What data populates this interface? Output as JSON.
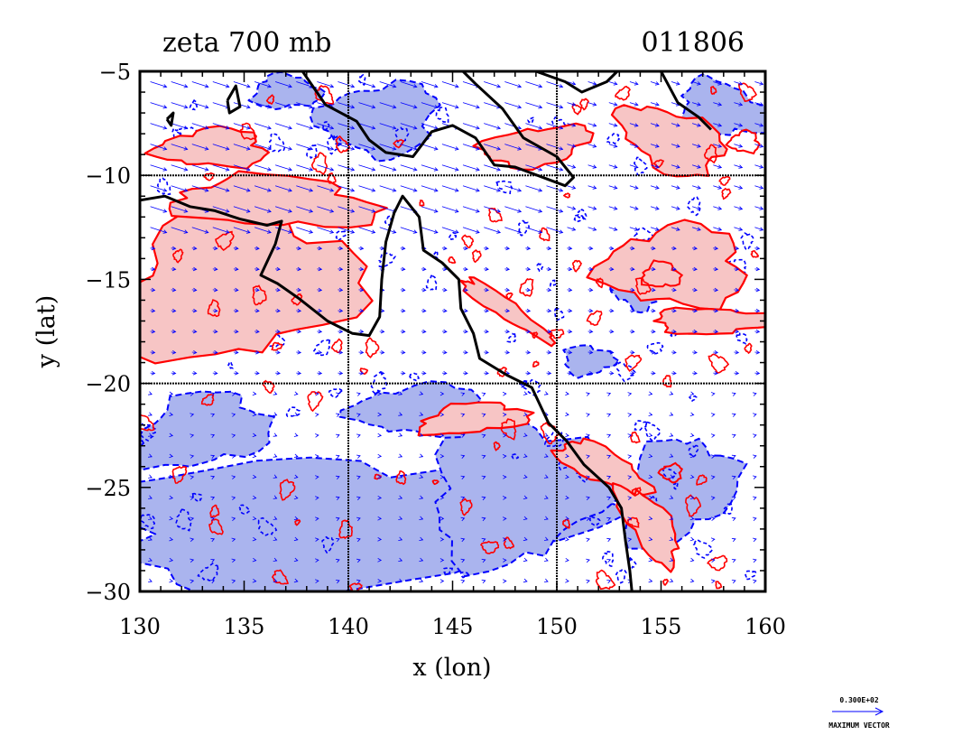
{
  "chart_data": {
    "type": "contour",
    "title": "zeta 700 mb",
    "date_label": "011806",
    "xlabel": "x (lon)",
    "ylabel": "y (lat)",
    "xlim": [
      130,
      160
    ],
    "ylim": [
      -30,
      -5
    ],
    "xticks": [
      130,
      135,
      140,
      145,
      150,
      155,
      160
    ],
    "yticks": [
      -5,
      -10,
      -15,
      -20,
      -25,
      -30
    ],
    "xtick_labels": [
      "130",
      "135",
      "140",
      "145",
      "150",
      "155",
      "160"
    ],
    "ytick_labels": [
      "−5",
      "−10",
      "−15",
      "−20",
      "−25",
      "−30"
    ],
    "gridlines_lon": [
      140,
      150
    ],
    "gridlines_lat": [
      -10,
      -20
    ],
    "colors": {
      "positive_fill": "#f7c5c5",
      "positive_line": "#ff0000",
      "negative_fill": "#aab4ee",
      "negative_line": "#0000ff",
      "vector": "#0000ff",
      "coastline": "#000000"
    },
    "legend": {
      "scale_value": "0.300E+02",
      "scale_label": "MAXIMUM VECTOR"
    }
  }
}
